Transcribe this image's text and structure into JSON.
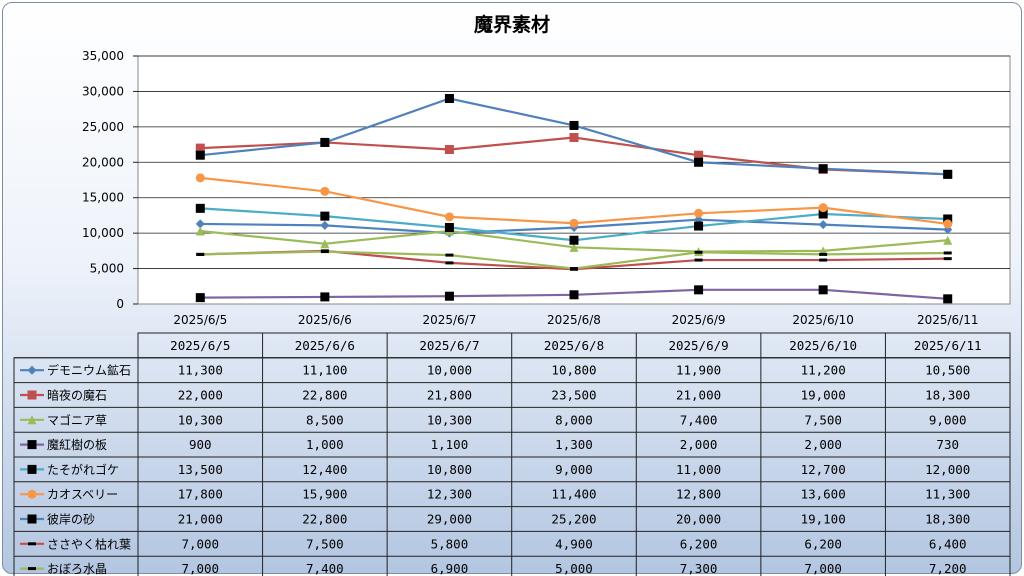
{
  "chart_data": {
    "type": "line",
    "title": "魔界素材",
    "categories": [
      "2025/6/5",
      "2025/6/6",
      "2025/6/7",
      "2025/6/8",
      "2025/6/9",
      "2025/6/10",
      "2025/6/11"
    ],
    "ylim": [
      0,
      35000
    ],
    "yticks": [
      "0",
      "5,000",
      "10,000",
      "15,000",
      "20,000",
      "25,000",
      "30,000",
      "35,000"
    ],
    "grid": true,
    "legend": "data-table",
    "series": [
      {
        "name": "デモニウム鉱石",
        "color": "#4f81bd",
        "marker": "diamond",
        "values": [
          11300,
          11100,
          10000,
          10800,
          11900,
          11200,
          10500
        ],
        "labels": [
          "11,300",
          "11,100",
          "10,000",
          "10,800",
          "11,900",
          "11,200",
          "10,500"
        ]
      },
      {
        "name": "暗夜の魔石",
        "color": "#c0504d",
        "marker": "square",
        "values": [
          22000,
          22800,
          21800,
          23500,
          21000,
          19000,
          18300
        ],
        "labels": [
          "22,000",
          "22,800",
          "21,800",
          "23,500",
          "21,000",
          "19,000",
          "18,300"
        ]
      },
      {
        "name": "マゴニア草",
        "color": "#9bbb59",
        "marker": "triangle",
        "values": [
          10300,
          8500,
          10300,
          8000,
          7400,
          7500,
          9000
        ],
        "labels": [
          "10,300",
          "8,500",
          "10,300",
          "8,000",
          "7,400",
          "7,500",
          "9,000"
        ]
      },
      {
        "name": "魔紅樹の板",
        "color": "#8064a2",
        "marker": "bsquare",
        "values": [
          900,
          1000,
          1100,
          1300,
          2000,
          2000,
          730
        ],
        "labels": [
          "900",
          "1,000",
          "1,100",
          "1,300",
          "2,000",
          "2,000",
          "730"
        ]
      },
      {
        "name": "たそがれゴケ",
        "color": "#4bacc6",
        "marker": "bsquare",
        "values": [
          13500,
          12400,
          10800,
          9000,
          11000,
          12700,
          12000
        ],
        "labels": [
          "13,500",
          "12,400",
          "10,800",
          "9,000",
          "11,000",
          "12,700",
          "12,000"
        ]
      },
      {
        "name": "カオスベリー",
        "color": "#f79646",
        "marker": "circle",
        "values": [
          17800,
          15900,
          12300,
          11400,
          12800,
          13600,
          11300
        ],
        "labels": [
          "17,800",
          "15,900",
          "12,300",
          "11,400",
          "12,800",
          "13,600",
          "11,300"
        ]
      },
      {
        "name": "彼岸の砂",
        "color": "#4f81bd",
        "marker": "bsquare",
        "values": [
          21000,
          22800,
          29000,
          25200,
          20000,
          19100,
          18300
        ],
        "labels": [
          "21,000",
          "22,800",
          "29,000",
          "25,200",
          "20,000",
          "19,100",
          "18,300"
        ]
      },
      {
        "name": "ささやく枯れ葉",
        "color": "#c0504d",
        "marker": "dash",
        "values": [
          7000,
          7500,
          5800,
          4900,
          6200,
          6200,
          6400
        ],
        "labels": [
          "7,000",
          "7,500",
          "5,800",
          "4,900",
          "6,200",
          "6,200",
          "6,400"
        ]
      },
      {
        "name": "おぼろ水晶",
        "color": "#9bbb59",
        "marker": "dash",
        "values": [
          7000,
          7400,
          6900,
          5000,
          7300,
          7000,
          7200
        ],
        "labels": [
          "7,000",
          "7,400",
          "6,900",
          "5,000",
          "7,300",
          "7,000",
          "7,200"
        ]
      }
    ]
  }
}
